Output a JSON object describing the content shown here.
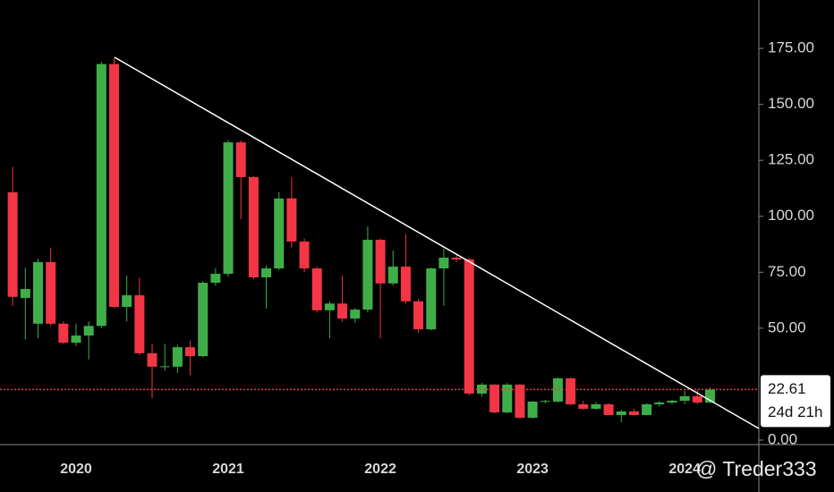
{
  "chart_data": {
    "type": "candlestick",
    "categories": [
      null,
      null,
      null,
      null,
      null,
      "2020",
      null,
      null,
      null,
      null,
      null,
      null,
      null,
      null,
      null,
      null,
      null,
      "2021",
      null,
      null,
      null,
      null,
      null,
      null,
      null,
      null,
      null,
      null,
      null,
      "2022",
      null,
      null,
      null,
      null,
      null,
      null,
      null,
      null,
      null,
      null,
      null,
      "2023",
      null,
      null,
      null,
      null,
      null,
      null,
      null,
      null,
      null,
      null,
      null,
      "2024",
      null,
      null
    ],
    "open": [
      110.7,
      63.5,
      52,
      79.5,
      52,
      43.5,
      46.7,
      51,
      168,
      59.5,
      64.7,
      38.8,
      32.8,
      32.8,
      41.5,
      37.5,
      70.3,
      74.3,
      133,
      117.5,
      72.7,
      76.7,
      108,
      88.7,
      76.7,
      58,
      61,
      54.3,
      58.3,
      89.5,
      70,
      77.5,
      62,
      49.5,
      76.7,
      81.5,
      80.7,
      20.8,
      24.8,
      12.4,
      24.8,
      10,
      17.2,
      17.2,
      27.6,
      16,
      14,
      16,
      11.2,
      12.8,
      11.2,
      16,
      16.8,
      17.6,
      19.6,
      16.8
    ],
    "high": [
      122,
      77,
      81,
      86,
      53,
      52,
      53,
      169,
      170.6,
      73.5,
      72.5,
      43,
      43,
      42.5,
      44.5,
      71,
      76.7,
      134,
      134,
      118,
      78,
      110.7,
      117.5,
      90,
      77.5,
      62,
      73.5,
      59,
      95.5,
      90,
      84.7,
      92,
      63,
      77,
      85.5,
      83,
      81.5,
      25.5,
      25,
      25.5,
      25,
      17.5,
      18,
      28,
      28,
      17.5,
      17,
      16.5,
      13.5,
      14,
      16.5,
      17.5,
      18,
      22,
      22.5,
      23.5
    ],
    "low": [
      60,
      45,
      45.5,
      51,
      43,
      42,
      36,
      50,
      59,
      53,
      38,
      18.8,
      31,
      30,
      29,
      37,
      69,
      73,
      98.7,
      72,
      58.7,
      76,
      86,
      75,
      57,
      45.5,
      53,
      52.5,
      57,
      45.5,
      69,
      61,
      48,
      49,
      60,
      79.5,
      20,
      19.5,
      12,
      12,
      9.5,
      9.5,
      16.5,
      17,
      15.5,
      13.5,
      13.5,
      11,
      8,
      11,
      11,
      15,
      16,
      16,
      16,
      16.5
    ],
    "close": [
      64,
      67.5,
      79.5,
      52,
      43.5,
      46.7,
      51,
      168,
      59.5,
      64.7,
      38.8,
      32.8,
      33,
      41.5,
      37.5,
      70.3,
      74.3,
      133,
      117.5,
      72.7,
      76.7,
      107.9,
      88.7,
      76.7,
      58,
      61,
      54.3,
      58.3,
      89.5,
      70,
      77.5,
      62,
      49.5,
      76.7,
      81.5,
      80.7,
      20.8,
      24.8,
      12.4,
      24.8,
      10,
      17.2,
      17.5,
      27.6,
      16,
      14,
      16,
      11.2,
      12.8,
      11.2,
      16,
      16.8,
      17.6,
      19.6,
      16.8,
      22.61
    ],
    "up_color": "#3fae49",
    "down_color": "#f23645",
    "ylim": [
      -2,
      196.6
    ],
    "yticks": [
      {
        "value": 0,
        "label": "0.00"
      },
      {
        "value": 50,
        "label": "50.00"
      },
      {
        "value": 75,
        "label": "75.00"
      },
      {
        "value": 100,
        "label": "100.00"
      },
      {
        "value": 125,
        "label": "125.00"
      },
      {
        "value": 150,
        "label": "150.00"
      },
      {
        "value": 175,
        "label": "175.00"
      }
    ],
    "last_price": 22.61,
    "countdown": "24d 21h",
    "watermark": "@ Treder333"
  }
}
